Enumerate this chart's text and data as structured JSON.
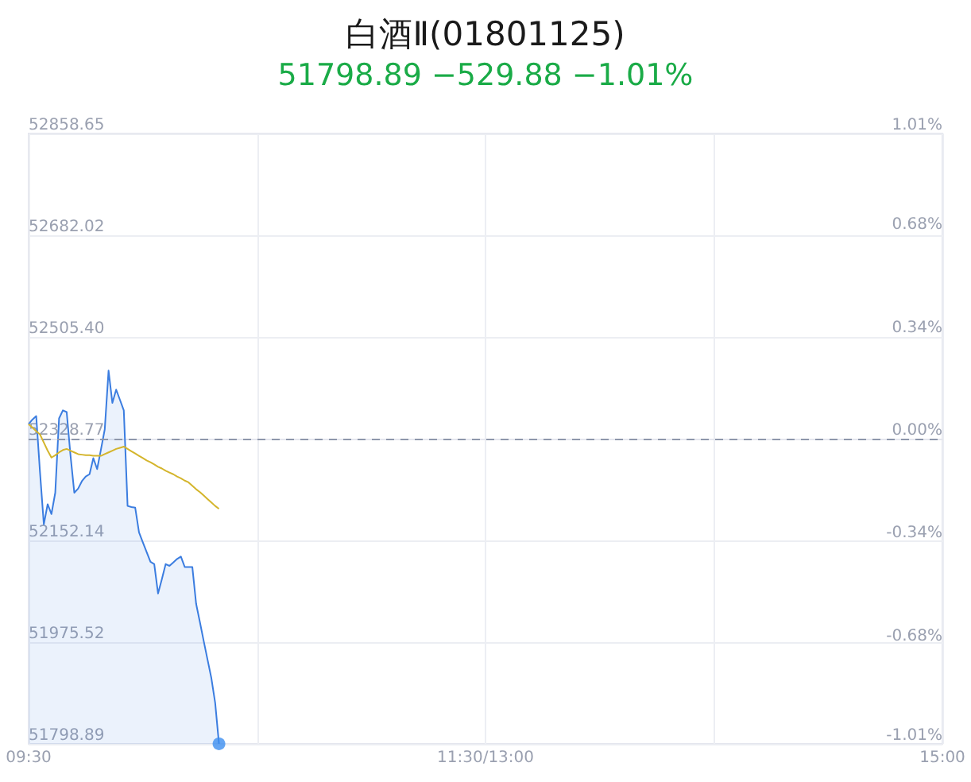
{
  "chart_data": {
    "type": "area",
    "title": "白酒Ⅱ(01801125)",
    "subtitle": "51798.89 −529.88 −1.01%",
    "categories": [
      "09:30",
      null,
      null,
      null,
      null,
      null,
      null,
      null,
      null,
      null,
      null,
      null,
      null,
      null,
      null,
      null,
      null,
      null,
      null,
      null,
      null,
      null,
      null,
      null,
      null,
      null,
      null,
      null,
      null,
      null,
      null,
      null,
      null,
      null,
      null,
      null,
      null,
      null,
      null,
      null,
      null,
      null,
      null,
      null,
      null,
      null,
      null,
      null,
      null,
      null,
      null,
      null,
      null,
      null,
      null,
      null,
      null,
      null,
      null,
      null,
      null,
      null,
      null,
      null,
      null,
      null,
      null,
      null,
      null,
      null,
      null,
      null,
      null,
      null,
      null,
      null,
      null,
      null,
      null,
      null,
      null,
      null,
      null,
      null,
      null,
      null,
      null,
      null,
      null,
      null,
      null,
      null,
      null,
      null,
      null,
      null,
      null,
      null,
      null,
      null,
      null,
      null,
      null,
      null,
      null,
      null,
      null,
      null,
      null,
      null,
      null,
      null,
      null,
      null,
      null,
      null,
      null,
      null,
      null,
      null,
      "11:30/13:00",
      null,
      null,
      null,
      null,
      null,
      null,
      null,
      null,
      null,
      null,
      null,
      null,
      null,
      null,
      null,
      null,
      null,
      null,
      null,
      null,
      null,
      null,
      null,
      null,
      null,
      null,
      null,
      null,
      null,
      null,
      null,
      null,
      null,
      null,
      null,
      null,
      null,
      null,
      null,
      null,
      null,
      null,
      null,
      null,
      null,
      null,
      null,
      null,
      null,
      null,
      null,
      null,
      null,
      null,
      null,
      null,
      null,
      null,
      null,
      null,
      null,
      null,
      null,
      null,
      null,
      null,
      null,
      null,
      null,
      null,
      null,
      null,
      null,
      null,
      null,
      null,
      null,
      null,
      null,
      null,
      null,
      null,
      null,
      null,
      null,
      null,
      null,
      null,
      null,
      null,
      null,
      null,
      null,
      null,
      null,
      null,
      null,
      null,
      null,
      null,
      null,
      null,
      null,
      null,
      null,
      null,
      null,
      null,
      null,
      null,
      null,
      null,
      null,
      null,
      null,
      null,
      null,
      null,
      null,
      "15:00"
    ],
    "ylim": [
      51798.89,
      52858.65
    ],
    "yticks": [
      {
        "value": 51798.89,
        "label": "51798.89"
      },
      {
        "value": 51975.52,
        "label": "51975.52"
      },
      {
        "value": 52152.14,
        "label": "52152.14"
      },
      {
        "value": 52328.77,
        "label": "52328.77"
      },
      {
        "value": 52505.4,
        "label": "52505.40"
      },
      {
        "value": 52682.02,
        "label": "52682.02"
      },
      {
        "value": 52858.65,
        "label": "52858.65"
      }
    ],
    "y2lim": [
      -1.01,
      1.01
    ],
    "y2ticks": [
      {
        "value": -1.01,
        "label": "-1.01%"
      },
      {
        "value": -0.68,
        "label": "-0.68%"
      },
      {
        "value": -0.34,
        "label": "-0.34%"
      },
      {
        "value": 0,
        "label": "0.00%"
      },
      {
        "value": 0.34,
        "label": "0.34%"
      },
      {
        "value": 0.68,
        "label": "0.68%"
      },
      {
        "value": 1.01,
        "label": "1.01%"
      }
    ],
    "grid": true,
    "marker": "none",
    "ref_lines": [
      {
        "axis": "y",
        "value": 52328.77,
        "color": "#8e97ab",
        "line_style": "dashed"
      }
    ],
    "series": [
      {
        "color": "#3b7de0",
        "values": [
          52354,
          52362,
          52368,
          52270,
          52180,
          52215,
          52198,
          52235,
          52364,
          52378,
          52375,
          52300,
          52235,
          52242,
          52255,
          52263,
          52267,
          52295,
          52276,
          52310,
          52345,
          52447,
          52391,
          52414,
          52396,
          52378,
          52212,
          52210,
          52209,
          52166,
          52149,
          52132,
          52115,
          52111,
          52060,
          52085,
          52111,
          52108,
          52114,
          52120,
          52124,
          52106,
          52106,
          52106,
          52042,
          52010,
          51977,
          51945,
          51913,
          51870,
          51799,
          null,
          null,
          null,
          null,
          null,
          null,
          null,
          null,
          null,
          null,
          null,
          null,
          null,
          null,
          null,
          null,
          null,
          null,
          null,
          null,
          null,
          null,
          null,
          null,
          null,
          null,
          null,
          null,
          null,
          null,
          null,
          null,
          null,
          null,
          null,
          null,
          null,
          null,
          null,
          null,
          null,
          null,
          null,
          null,
          null,
          null,
          null,
          null,
          null,
          null,
          null,
          null,
          null,
          null,
          null,
          null,
          null,
          null,
          null,
          null,
          null,
          null,
          null,
          null,
          null,
          null,
          null,
          null,
          null,
          null,
          null,
          null,
          null,
          null,
          null,
          null,
          null,
          null,
          null,
          null,
          null,
          null,
          null,
          null,
          null,
          null,
          null,
          null,
          null,
          null,
          null,
          null,
          null,
          null,
          null,
          null,
          null,
          null,
          null,
          null,
          null,
          null,
          null,
          null,
          null,
          null,
          null,
          null,
          null,
          null,
          null,
          null,
          null,
          null,
          null,
          null,
          null,
          null,
          null,
          null,
          null,
          null,
          null,
          null,
          null,
          null,
          null,
          null,
          null,
          null,
          null,
          null,
          null,
          null,
          null,
          null,
          null,
          null,
          null,
          null,
          null,
          null,
          null,
          null,
          null,
          null,
          null,
          null,
          null,
          null,
          null,
          null,
          null,
          null,
          null,
          null,
          null,
          null,
          null,
          null,
          null,
          null,
          null,
          null,
          null,
          null,
          null,
          null,
          null,
          null,
          null,
          null,
          null,
          null,
          null,
          null,
          null,
          null,
          null,
          null,
          null,
          null,
          null,
          null,
          null,
          null,
          null,
          null,
          null,
          null
        ]
      },
      {
        "type": "line",
        "color": "#d4b52c",
        "values": [
          52354,
          52348,
          52342,
          52336,
          52322,
          52308,
          52296,
          52300,
          52305,
          52309,
          52311,
          52308,
          52305,
          52302,
          52301,
          52300,
          52300,
          52299,
          52299,
          52299,
          52302,
          52305,
          52308,
          52311,
          52313,
          52315,
          52311,
          52307,
          52303,
          52299,
          52295,
          52291,
          52288,
          52284,
          52280,
          52277,
          52273,
          52270,
          52267,
          52263,
          52260,
          52256,
          52253,
          52247,
          52241,
          52236,
          52230,
          52224,
          52218,
          52212,
          52207,
          null,
          null,
          null,
          null,
          null,
          null,
          null,
          null,
          null,
          null,
          null,
          null,
          null,
          null,
          null,
          null,
          null,
          null,
          null,
          null,
          null,
          null,
          null,
          null,
          null,
          null,
          null,
          null,
          null,
          null,
          null,
          null,
          null,
          null,
          null,
          null,
          null,
          null,
          null,
          null,
          null,
          null,
          null,
          null,
          null,
          null,
          null,
          null,
          null,
          null,
          null,
          null,
          null,
          null,
          null,
          null,
          null,
          null,
          null,
          null,
          null,
          null,
          null,
          null,
          null,
          null,
          null,
          null,
          null,
          null,
          null,
          null,
          null,
          null,
          null,
          null,
          null,
          null,
          null,
          null,
          null,
          null,
          null,
          null,
          null,
          null,
          null,
          null,
          null,
          null,
          null,
          null,
          null,
          null,
          null,
          null,
          null,
          null,
          null,
          null,
          null,
          null,
          null,
          null,
          null,
          null,
          null,
          null,
          null,
          null,
          null,
          null,
          null,
          null,
          null,
          null,
          null,
          null,
          null,
          null,
          null,
          null,
          null,
          null,
          null,
          null,
          null,
          null,
          null,
          null,
          null,
          null,
          null,
          null,
          null,
          null,
          null,
          null,
          null,
          null,
          null,
          null,
          null,
          null,
          null,
          null,
          null,
          null,
          null,
          null,
          null,
          null,
          null,
          null,
          null,
          null,
          null,
          null,
          null,
          null,
          null,
          null,
          null,
          null,
          null,
          null,
          null,
          null,
          null,
          null,
          null,
          null,
          null,
          null,
          null,
          null,
          null,
          null,
          null,
          null,
          null,
          null,
          null,
          null,
          null,
          null,
          null,
          null,
          null,
          null
        ]
      },
      {
        "type": "scatter",
        "color": "#3d8ef0",
        "marker": "circle",
        "values": [
          null,
          null,
          null,
          null,
          null,
          null,
          null,
          null,
          null,
          null,
          null,
          null,
          null,
          null,
          null,
          null,
          null,
          null,
          null,
          null,
          null,
          null,
          null,
          null,
          null,
          null,
          null,
          null,
          null,
          null,
          null,
          null,
          null,
          null,
          null,
          null,
          null,
          null,
          null,
          null,
          null,
          null,
          null,
          null,
          null,
          null,
          null,
          null,
          null,
          null,
          51799,
          null,
          null,
          null,
          null,
          null,
          null,
          null,
          null,
          null,
          null,
          null,
          null,
          null,
          null,
          null,
          null,
          null,
          null,
          null,
          null,
          null,
          null,
          null,
          null,
          null,
          null,
          null,
          null,
          null,
          null,
          null,
          null,
          null,
          null,
          null,
          null,
          null,
          null,
          null,
          null,
          null,
          null,
          null,
          null,
          null,
          null,
          null,
          null,
          null,
          null,
          null,
          null,
          null,
          null,
          null,
          null,
          null,
          null,
          null,
          null,
          null,
          null,
          null,
          null,
          null,
          null,
          null,
          null,
          null,
          null,
          null,
          null,
          null,
          null,
          null,
          null,
          null,
          null,
          null,
          null,
          null,
          null,
          null,
          null,
          null,
          null,
          null,
          null,
          null,
          null,
          null,
          null,
          null,
          null,
          null,
          null,
          null,
          null,
          null,
          null,
          null,
          null,
          null,
          null,
          null,
          null,
          null,
          null,
          null,
          null,
          null,
          null,
          null,
          null,
          null,
          null,
          null,
          null,
          null,
          null,
          null,
          null,
          null,
          null,
          null,
          null,
          null,
          null,
          null,
          null,
          null,
          null,
          null,
          null,
          null,
          null,
          null,
          null,
          null,
          null,
          null,
          null,
          null,
          null,
          null,
          null,
          null,
          null,
          null,
          null,
          null,
          null,
          null,
          null,
          null,
          null,
          null,
          null,
          null,
          null,
          null,
          null,
          null,
          null,
          null,
          null,
          null,
          null,
          null,
          null,
          null,
          null,
          null,
          null,
          null,
          null,
          null,
          null,
          null,
          null,
          null,
          null,
          null,
          null,
          null,
          null,
          null,
          null,
          null,
          null
        ]
      }
    ]
  }
}
